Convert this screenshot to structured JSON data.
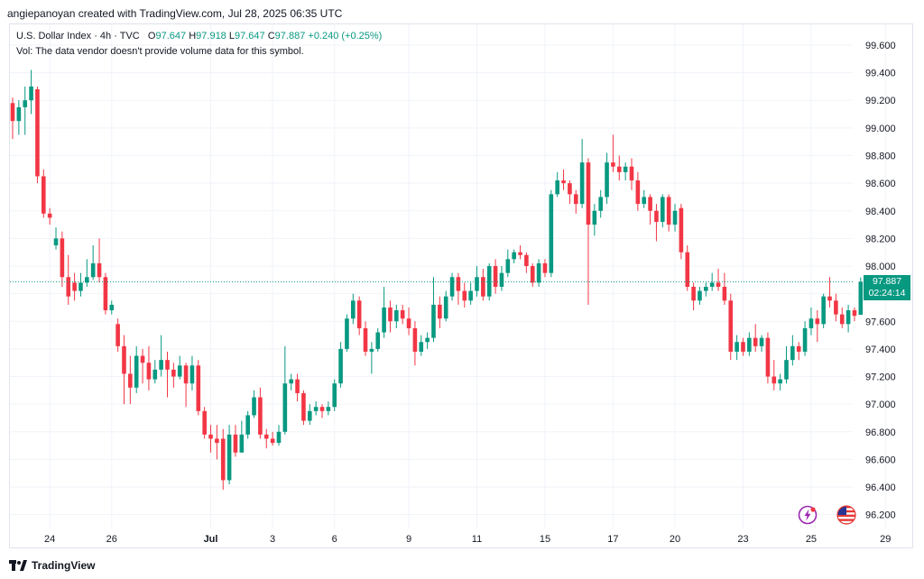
{
  "header": {
    "credit": "angiepanoyan created with TradingView.com, Jul 28, 2025 06:35 UTC"
  },
  "legend": {
    "symbol": "U.S. Dollar Index · 4h · TVC",
    "open_label": "O",
    "open": "97.647",
    "high_label": "H",
    "high": "97.918",
    "low_label": "L",
    "low": "97.647",
    "close_label": "C",
    "close": "97.887",
    "change": "+0.240 (+0.25%)",
    "vol_note": "Vol: The data vendor doesn't provide volume data for this symbol."
  },
  "price_tag": {
    "price": "97.887",
    "countdown": "02:24:14"
  },
  "footer": {
    "brand": "TradingView"
  },
  "colors": {
    "up": "#089981",
    "down": "#f23645",
    "grid": "#f0f3fa",
    "axis_text": "#131722",
    "last_line": "#089981"
  },
  "icons": {
    "event_left": "lightning-event-icon",
    "event_right": "us-flag-event-icon"
  },
  "chart_data": {
    "type": "candlestick",
    "symbol": "U.S. Dollar Index",
    "interval": "4h",
    "ylim": [
      96.1,
      99.75
    ],
    "y_ticks": [
      96.2,
      96.4,
      96.6,
      96.8,
      97.0,
      97.2,
      97.4,
      97.6,
      97.8,
      98.0,
      98.2,
      98.4,
      98.6,
      98.8,
      99.0,
      99.2,
      99.4,
      99.6
    ],
    "y_tick_labels": [
      "96.200",
      "96.400",
      "96.600",
      "96.800",
      "97.000",
      "97.200",
      "97.400",
      "97.600",
      "97.800",
      "98.000",
      "98.200",
      "98.400",
      "98.600",
      "98.800",
      "99.000",
      "99.200",
      "99.400",
      "99.600"
    ],
    "x_ticks": [
      {
        "label": "24",
        "index": 6
      },
      {
        "label": "26",
        "index": 16
      },
      {
        "label": "Jul",
        "index": 32,
        "bold": true
      },
      {
        "label": "3",
        "index": 42
      },
      {
        "label": "6",
        "index": 52
      },
      {
        "label": "9",
        "index": 64
      },
      {
        "label": "11",
        "index": 75
      },
      {
        "label": "15",
        "index": 86
      },
      {
        "label": "17",
        "index": 97
      },
      {
        "label": "20",
        "index": 107
      },
      {
        "label": "23",
        "index": 118
      },
      {
        "label": "25",
        "index": 129
      },
      {
        "label": "29",
        "index": 141
      }
    ],
    "last_price": 97.887,
    "candles": [
      [
        99.18,
        99.05,
        99.22,
        98.92
      ],
      [
        99.05,
        99.15,
        99.2,
        98.95
      ],
      [
        99.15,
        99.2,
        99.3,
        98.95
      ],
      [
        99.2,
        99.3,
        99.42,
        99.1
      ],
      [
        99.28,
        98.65,
        99.3,
        98.6
      ],
      [
        98.65,
        98.38,
        98.7,
        98.35
      ],
      [
        98.38,
        98.35,
        98.42,
        98.3
      ],
      [
        98.15,
        98.2,
        98.28,
        98.12
      ],
      [
        98.2,
        97.92,
        98.25,
        97.85
      ],
      [
        97.92,
        97.78,
        98.08,
        97.72
      ],
      [
        97.88,
        97.82,
        97.95,
        97.75
      ],
      [
        97.82,
        97.88,
        97.95,
        97.78
      ],
      [
        97.88,
        97.92,
        98.05,
        97.85
      ],
      [
        97.92,
        98.02,
        98.15,
        97.9
      ],
      [
        98.02,
        97.92,
        98.2,
        97.88
      ],
      [
        97.92,
        97.68,
        97.95,
        97.65
      ],
      [
        97.68,
        97.72,
        97.75,
        97.65
      ],
      [
        97.58,
        97.42,
        97.62,
        97.38
      ],
      [
        97.42,
        97.22,
        97.5,
        97.0
      ],
      [
        97.22,
        97.12,
        97.35,
        97.0
      ],
      [
        97.12,
        97.35,
        97.42,
        97.08
      ],
      [
        97.35,
        97.3,
        97.4,
        97.15
      ],
      [
        97.3,
        97.18,
        97.42,
        97.1
      ],
      [
        97.18,
        97.25,
        97.32,
        97.15
      ],
      [
        97.25,
        97.32,
        97.5,
        97.2
      ],
      [
        97.32,
        97.25,
        97.38,
        97.05
      ],
      [
        97.25,
        97.2,
        97.3,
        97.12
      ],
      [
        97.2,
        97.28,
        97.35,
        97.18
      ],
      [
        97.28,
        97.15,
        97.3,
        96.98
      ],
      [
        97.15,
        97.28,
        97.35,
        97.1
      ],
      [
        97.28,
        96.95,
        97.32,
        96.92
      ],
      [
        96.95,
        96.78,
        96.98,
        96.75
      ],
      [
        96.78,
        96.75,
        96.85,
        96.65
      ],
      [
        96.75,
        96.72,
        96.85,
        96.6
      ],
      [
        96.75,
        96.45,
        96.82,
        96.38
      ],
      [
        96.45,
        96.78,
        96.85,
        96.42
      ],
      [
        96.78,
        96.65,
        96.85,
        96.62
      ],
      [
        96.65,
        96.78,
        96.88,
        96.65
      ],
      [
        96.78,
        96.92,
        96.95,
        96.75
      ],
      [
        96.92,
        97.05,
        97.1,
        96.9
      ],
      [
        97.05,
        96.78,
        97.12,
        96.75
      ],
      [
        96.78,
        96.75,
        96.82,
        96.68
      ],
      [
        96.75,
        96.72,
        96.8,
        96.7
      ],
      [
        96.72,
        96.8,
        96.85,
        96.7
      ],
      [
        96.8,
        97.15,
        97.42,
        96.78
      ],
      [
        97.15,
        97.18,
        97.22,
        97.1
      ],
      [
        97.18,
        97.08,
        97.22,
        97.02
      ],
      [
        97.08,
        96.88,
        97.1,
        96.85
      ],
      [
        96.88,
        96.95,
        97.0,
        96.85
      ],
      [
        96.95,
        96.98,
        97.02,
        96.92
      ],
      [
        96.98,
        96.95,
        97.0,
        96.9
      ],
      [
        96.95,
        96.98,
        97.02,
        96.92
      ],
      [
        96.98,
        97.15,
        97.18,
        96.95
      ],
      [
        97.15,
        97.4,
        97.45,
        97.12
      ],
      [
        97.4,
        97.62,
        97.65,
        97.38
      ],
      [
        97.62,
        97.75,
        97.8,
        97.58
      ],
      [
        97.75,
        97.55,
        97.78,
        97.5
      ],
      [
        97.55,
        97.38,
        97.6,
        97.35
      ],
      [
        97.38,
        97.4,
        97.45,
        97.22
      ],
      [
        97.4,
        97.52,
        97.55,
        97.38
      ],
      [
        97.52,
        97.7,
        97.85,
        97.48
      ],
      [
        97.7,
        97.6,
        97.75,
        97.52
      ],
      [
        97.6,
        97.68,
        97.72,
        97.55
      ],
      [
        97.68,
        97.62,
        97.72,
        97.58
      ],
      [
        97.62,
        97.55,
        97.7,
        97.5
      ],
      [
        97.55,
        97.38,
        97.6,
        97.28
      ],
      [
        97.38,
        97.45,
        97.5,
        97.35
      ],
      [
        97.45,
        97.48,
        97.52,
        97.4
      ],
      [
        97.48,
        97.72,
        97.92,
        97.45
      ],
      [
        97.72,
        97.62,
        97.78,
        97.55
      ],
      [
        97.62,
        97.78,
        97.82,
        97.6
      ],
      [
        97.78,
        97.92,
        97.95,
        97.75
      ],
      [
        97.92,
        97.82,
        97.95,
        97.72
      ],
      [
        97.82,
        97.75,
        97.88,
        97.7
      ],
      [
        97.75,
        97.82,
        97.88,
        97.72
      ],
      [
        97.82,
        97.92,
        98.0,
        97.78
      ],
      [
        97.92,
        97.78,
        97.98,
        97.75
      ],
      [
        97.78,
        98.0,
        98.02,
        97.75
      ],
      [
        98.0,
        97.85,
        98.05,
        97.8
      ],
      [
        97.85,
        97.95,
        98.0,
        97.82
      ],
      [
        97.95,
        98.05,
        98.12,
        97.92
      ],
      [
        98.05,
        98.1,
        98.12,
        98.02
      ],
      [
        98.1,
        98.08,
        98.15,
        98.05
      ],
      [
        98.08,
        98.0,
        98.1,
        97.95
      ],
      [
        98.0,
        97.88,
        98.02,
        97.85
      ],
      [
        97.88,
        98.02,
        98.05,
        97.85
      ],
      [
        98.02,
        97.95,
        98.05,
        97.92
      ],
      [
        97.95,
        98.52,
        98.55,
        97.92
      ],
      [
        98.52,
        98.62,
        98.68,
        98.5
      ],
      [
        98.62,
        98.6,
        98.7,
        98.55
      ],
      [
        98.6,
        98.52,
        98.62,
        98.45
      ],
      [
        98.52,
        98.45,
        98.55,
        98.38
      ],
      [
        98.45,
        98.75,
        98.92,
        98.42
      ],
      [
        98.75,
        98.3,
        98.78,
        97.72
      ],
      [
        98.3,
        98.4,
        98.45,
        98.22
      ],
      [
        98.4,
        98.5,
        98.55,
        98.35
      ],
      [
        98.5,
        98.75,
        98.82,
        98.45
      ],
      [
        98.75,
        98.72,
        98.95,
        98.68
      ],
      [
        98.72,
        98.68,
        98.8,
        98.62
      ],
      [
        98.68,
        98.72,
        98.75,
        98.62
      ],
      [
        98.72,
        98.62,
        98.78,
        98.55
      ],
      [
        98.62,
        98.45,
        98.68,
        98.4
      ],
      [
        98.45,
        98.5,
        98.55,
        98.42
      ],
      [
        98.5,
        98.4,
        98.52,
        98.3
      ],
      [
        98.4,
        98.32,
        98.45,
        98.18
      ],
      [
        98.32,
        98.5,
        98.52,
        98.28
      ],
      [
        98.5,
        98.3,
        98.52,
        98.25
      ],
      [
        98.3,
        98.4,
        98.45,
        98.25
      ],
      [
        98.42,
        98.1,
        98.45,
        98.05
      ],
      [
        98.1,
        97.85,
        98.15,
        97.82
      ],
      [
        97.85,
        97.75,
        97.88,
        97.68
      ],
      [
        97.75,
        97.82,
        97.85,
        97.72
      ],
      [
        97.82,
        97.85,
        97.88,
        97.78
      ],
      [
        97.85,
        97.88,
        97.95,
        97.82
      ],
      [
        97.88,
        97.85,
        97.98,
        97.82
      ],
      [
        97.85,
        97.75,
        97.95,
        97.72
      ],
      [
        97.75,
        97.38,
        97.8,
        97.32
      ],
      [
        97.38,
        97.45,
        97.5,
        97.32
      ],
      [
        97.45,
        97.38,
        97.48,
        97.35
      ],
      [
        97.38,
        97.48,
        97.52,
        97.35
      ],
      [
        97.48,
        97.42,
        97.58,
        97.38
      ],
      [
        97.42,
        97.48,
        97.5,
        97.38
      ],
      [
        97.48,
        97.2,
        97.52,
        97.15
      ],
      [
        97.2,
        97.15,
        97.32,
        97.1
      ],
      [
        97.15,
        97.18,
        97.22,
        97.1
      ],
      [
        97.18,
        97.32,
        97.42,
        97.15
      ],
      [
        97.32,
        97.42,
        97.5,
        97.28
      ],
      [
        97.42,
        97.38,
        97.45,
        97.32
      ],
      [
        97.38,
        97.55,
        97.6,
        97.35
      ],
      [
        97.55,
        97.62,
        97.7,
        97.5
      ],
      [
        97.62,
        97.58,
        97.68,
        97.45
      ],
      [
        97.58,
        97.78,
        97.8,
        97.55
      ],
      [
        97.78,
        97.75,
        97.92,
        97.7
      ],
      [
        97.75,
        97.65,
        97.8,
        97.6
      ],
      [
        97.65,
        97.58,
        97.7,
        97.55
      ],
      [
        97.58,
        97.68,
        97.72,
        97.52
      ],
      [
        97.68,
        97.64,
        97.7,
        97.6
      ],
      [
        97.647,
        97.887,
        97.918,
        97.647
      ]
    ]
  }
}
